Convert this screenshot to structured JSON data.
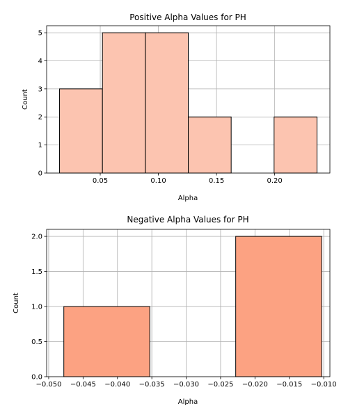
{
  "chart_data": [
    {
      "type": "bar",
      "title": "Positive Alpha Values for PH",
      "xlabel": "Alpha",
      "ylabel": "Count",
      "bins": [
        {
          "x0": 0.015,
          "x1": 0.0519,
          "count": 3
        },
        {
          "x0": 0.0519,
          "x1": 0.0888,
          "count": 5
        },
        {
          "x0": 0.0888,
          "x1": 0.1257,
          "count": 5
        },
        {
          "x0": 0.1257,
          "x1": 0.1626,
          "count": 2
        },
        {
          "x0": 0.1626,
          "x1": 0.1995,
          "count": 0
        },
        {
          "x0": 0.1995,
          "x1": 0.2364,
          "count": 2
        }
      ],
      "xlim": [
        0.0039,
        0.2475
      ],
      "ylim": [
        0,
        5.25
      ],
      "xticks": [
        {
          "value": 0.05,
          "label": "0.05"
        },
        {
          "value": 0.1,
          "label": "0.10"
        },
        {
          "value": 0.15,
          "label": "0.15"
        },
        {
          "value": 0.2,
          "label": "0.20"
        }
      ],
      "yticks": [
        {
          "value": 0,
          "label": "0"
        },
        {
          "value": 1,
          "label": "1"
        },
        {
          "value": 2,
          "label": "2"
        },
        {
          "value": 3,
          "label": "3"
        },
        {
          "value": 4,
          "label": "4"
        },
        {
          "value": 5,
          "label": "5"
        }
      ],
      "grid": true,
      "bar_color": "#fcc4b0",
      "edge_color": "#000000"
    },
    {
      "type": "bar",
      "title": "Negative Alpha Values for PH",
      "xlabel": "Alpha",
      "ylabel": "Count",
      "bins": [
        {
          "x0": -0.0478,
          "x1": -0.0353,
          "count": 1
        },
        {
          "x0": -0.0353,
          "x1": -0.0228,
          "count": 0
        },
        {
          "x0": -0.0228,
          "x1": -0.0103,
          "count": 2
        }
      ],
      "xlim": [
        -0.0503,
        -0.0091
      ],
      "ylim": [
        0,
        2.1
      ],
      "xticks": [
        {
          "value": -0.05,
          "label": "−0.050"
        },
        {
          "value": -0.045,
          "label": "−0.045"
        },
        {
          "value": -0.04,
          "label": "−0.040"
        },
        {
          "value": -0.035,
          "label": "−0.035"
        },
        {
          "value": -0.03,
          "label": "−0.030"
        },
        {
          "value": -0.025,
          "label": "−0.025"
        },
        {
          "value": -0.02,
          "label": "−0.020"
        },
        {
          "value": -0.015,
          "label": "−0.015"
        },
        {
          "value": -0.01,
          "label": "−0.010"
        }
      ],
      "yticks": [
        {
          "value": 0,
          "label": "0.0"
        },
        {
          "value": 0.5,
          "label": "0.5"
        },
        {
          "value": 1.0,
          "label": "1.0"
        },
        {
          "value": 1.5,
          "label": "1.5"
        },
        {
          "value": 2.0,
          "label": "2.0"
        }
      ],
      "grid": true,
      "bar_color": "#fca282",
      "edge_color": "#000000"
    }
  ]
}
